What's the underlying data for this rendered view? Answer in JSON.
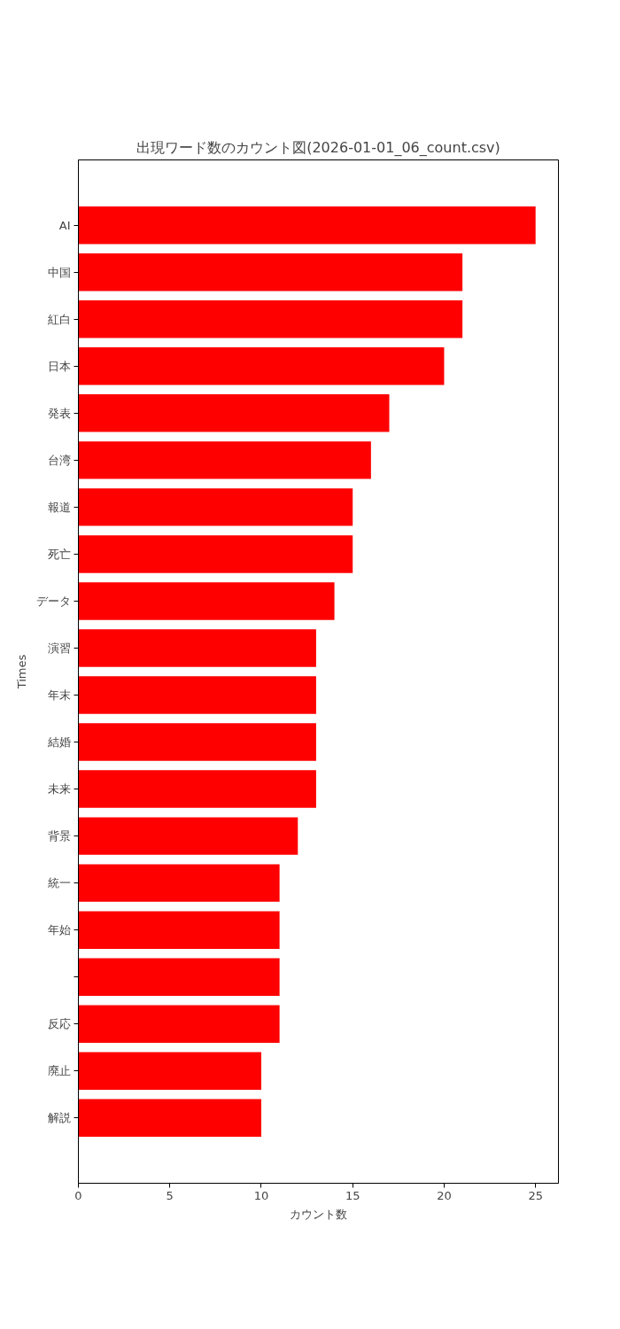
{
  "chart_data": {
    "type": "bar",
    "orientation": "horizontal",
    "title": "出現ワード数のカウント図(2026-01-01_06_count.csv)",
    "xlabel": "カウント数",
    "ylabel": "Times",
    "categories": [
      "AI",
      "中国",
      "紅白",
      "日本",
      "発表",
      "台湾",
      "報道",
      "死亡",
      "データ",
      "演習",
      "年末",
      "結婚",
      "未来",
      "背景",
      "統一",
      "年始",
      null,
      "反応",
      "廃止",
      "解説"
    ],
    "values": [
      25,
      21,
      21,
      20,
      17,
      16,
      15,
      15,
      14,
      13,
      13,
      13,
      13,
      12,
      11,
      11,
      11,
      11,
      10,
      10
    ],
    "color": "#ff0000",
    "xlim": [
      0,
      26.25
    ],
    "xticks": [
      0,
      5,
      10,
      15,
      20,
      25
    ]
  }
}
